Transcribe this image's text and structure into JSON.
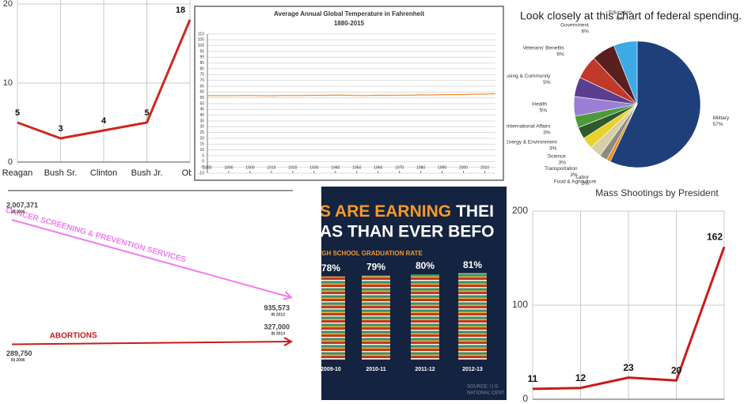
{
  "chart_data": [
    {
      "type": "line",
      "categories": [
        "Reagan",
        "Bush Sr.",
        "Clinton",
        "Bush Jr.",
        "Oba"
      ],
      "values": [
        5,
        3,
        4,
        5,
        18
      ],
      "color": "#cc2a1e",
      "ylim": [
        0,
        20.5
      ],
      "yticks": [
        0,
        10,
        20
      ],
      "grid": true,
      "data_labels": true
    },
    {
      "type": "line",
      "title": "Average Annual Global Temperature in Fahrenheit",
      "subtitle": "1880-2015",
      "x": [
        1880,
        1885,
        1890,
        1895,
        1900,
        1905,
        1910,
        1915,
        1920,
        1925,
        1930,
        1935,
        1940,
        1945,
        1950,
        1955,
        1960,
        1965,
        1970,
        1975,
        1980,
        1985,
        1990,
        1995,
        2000,
        2005,
        2010,
        2015
      ],
      "values": [
        56.9,
        56.8,
        56.8,
        56.9,
        57.0,
        56.8,
        56.7,
        57.0,
        57.0,
        57.0,
        57.1,
        57.1,
        57.3,
        57.2,
        57.0,
        57.0,
        57.2,
        57.1,
        57.2,
        57.2,
        57.5,
        57.4,
        57.7,
        57.7,
        57.8,
        58.1,
        58.2,
        58.5
      ],
      "color": "#f0913a",
      "xlim": [
        1880,
        2015
      ],
      "xticks": [
        1880,
        1890,
        1900,
        1910,
        1920,
        1930,
        1940,
        1950,
        1960,
        1970,
        1980,
        1990,
        2000,
        2010
      ],
      "ylim": [
        -10,
        110
      ],
      "yticks": [
        -10,
        -5,
        0,
        5,
        10,
        15,
        20,
        25,
        30,
        35,
        40,
        45,
        50,
        55,
        60,
        65,
        70,
        75,
        80,
        85,
        90,
        95,
        100,
        105,
        110
      ],
      "grid": true,
      "data_labels": false
    },
    {
      "type": "pie",
      "title": "Look closely at this chart of federal spending.",
      "categories": [
        "Military",
        "Food & Agriculture",
        "Labor",
        "Transportation",
        "Science",
        "Energy & Environment",
        "International Affairs",
        "Health",
        "Housing & Community",
        "Veterans' Benefits",
        "Government",
        "Education"
      ],
      "values": [
        57,
        1,
        2,
        3,
        3,
        3,
        3,
        5,
        5,
        6,
        6,
        6
      ],
      "value_labels": [
        "57%",
        "1%",
        "2%",
        "3%",
        "3%",
        "3%",
        "3%",
        "5%",
        "5%",
        "6%",
        "6%",
        "6%"
      ],
      "colors": [
        "#1f3f7a",
        "#e8901e",
        "#8a8a80",
        "#d8cfa8",
        "#e8d22a",
        "#2f5a2a",
        "#4c9a3a",
        "#9b7fd6",
        "#5a3f8e",
        "#c0392b",
        "#5a1f1f",
        "#3fa9e6"
      ]
    },
    {
      "type": "slope",
      "categories": [
        "IN 2006",
        "IN 2013"
      ],
      "series": [
        {
          "name": "CANCER SCREENING & PREVENTION SERVICES",
          "color": "#f07cf0",
          "values": [
            2007371,
            935573
          ],
          "value_labels": [
            "2,007,371",
            "935,573"
          ]
        },
        {
          "name": "ABORTIONS",
          "color": "#cc1a1a",
          "values": [
            289750,
            327000
          ],
          "value_labels": [
            "289,750",
            "327,000"
          ]
        }
      ]
    },
    {
      "type": "pictograph",
      "title": "S ARE EARNING",
      "title_continued": "THEI",
      "title_line2": "AS THAN EVER BEFO",
      "subtitle": "IGH SCHOOL GRADUATION RATE",
      "categories": [
        "2009-10",
        "2010-11",
        "2011-12",
        "2012-13"
      ],
      "values": [
        78,
        79,
        80,
        81
      ],
      "value_labels": [
        "78%",
        "79%",
        "80%",
        "81%"
      ],
      "source": [
        "SOURCE: U.S.",
        "NATIONAL CENT"
      ]
    },
    {
      "type": "line",
      "title": "Mass Shootings by President",
      "categories": [
        null,
        null,
        null,
        null,
        null
      ],
      "values": [
        11,
        12,
        23,
        20,
        162
      ],
      "color": "#cc1a1a",
      "ylim": [
        0,
        200
      ],
      "yticks": [
        0,
        100,
        200
      ],
      "grid": true,
      "data_labels": true
    }
  ]
}
